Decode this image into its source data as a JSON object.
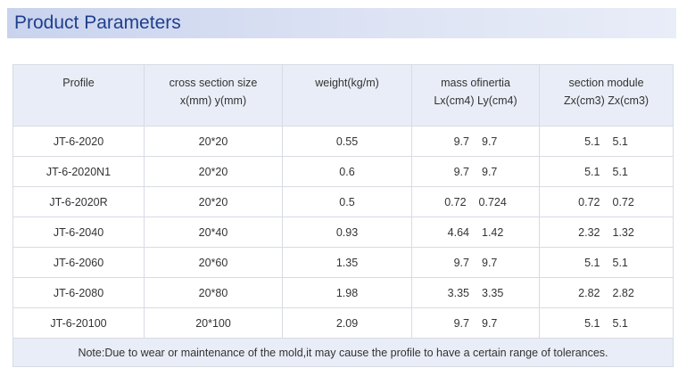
{
  "banner": {
    "title": "Product Parameters"
  },
  "table": {
    "headers": [
      {
        "line1": "Profile",
        "line2": ""
      },
      {
        "line1": "cross section size",
        "line2": "x(mm) y(mm)"
      },
      {
        "line1": "weight(kg/m)",
        "line2": ""
      },
      {
        "line1": "mass ofinertia",
        "line2": "Lx(cm4) Ly(cm4)"
      },
      {
        "line1": "section module",
        "line2": "Zx(cm3) Zx(cm3)"
      }
    ],
    "rows": [
      {
        "profile": "JT-6-2020",
        "size": "20*20",
        "weight": "0.55",
        "lx": "9.7",
        "ly": "9.7",
        "zx1": "5.1",
        "zx2": "5.1"
      },
      {
        "profile": "JT-6-2020N1",
        "size": "20*20",
        "weight": "0.6",
        "lx": "9.7",
        "ly": "9.7",
        "zx1": "5.1",
        "zx2": "5.1"
      },
      {
        "profile": "JT-6-2020R",
        "size": "20*20",
        "weight": "0.5",
        "lx": "0.72",
        "ly": "0.724",
        "zx1": "0.72",
        "zx2": "0.72"
      },
      {
        "profile": "JT-6-2040",
        "size": "20*40",
        "weight": "0.93",
        "lx": "4.64",
        "ly": "1.42",
        "zx1": "2.32",
        "zx2": "1.32"
      },
      {
        "profile": "JT-6-2060",
        "size": "20*60",
        "weight": "1.35",
        "lx": "9.7",
        "ly": "9.7",
        "zx1": "5.1",
        "zx2": "5.1"
      },
      {
        "profile": "JT-6-2080",
        "size": "20*80",
        "weight": "1.98",
        "lx": "3.35",
        "ly": "3.35",
        "zx1": "2.82",
        "zx2": "2.82"
      },
      {
        "profile": "JT-6-20100",
        "size": "20*100",
        "weight": "2.09",
        "lx": "9.7",
        "ly": "9.7",
        "zx1": "5.1",
        "zx2": "5.1"
      }
    ],
    "note": "Note:Due to wear or maintenance of the mold,it may cause the profile to have a certain range of tolerances."
  }
}
